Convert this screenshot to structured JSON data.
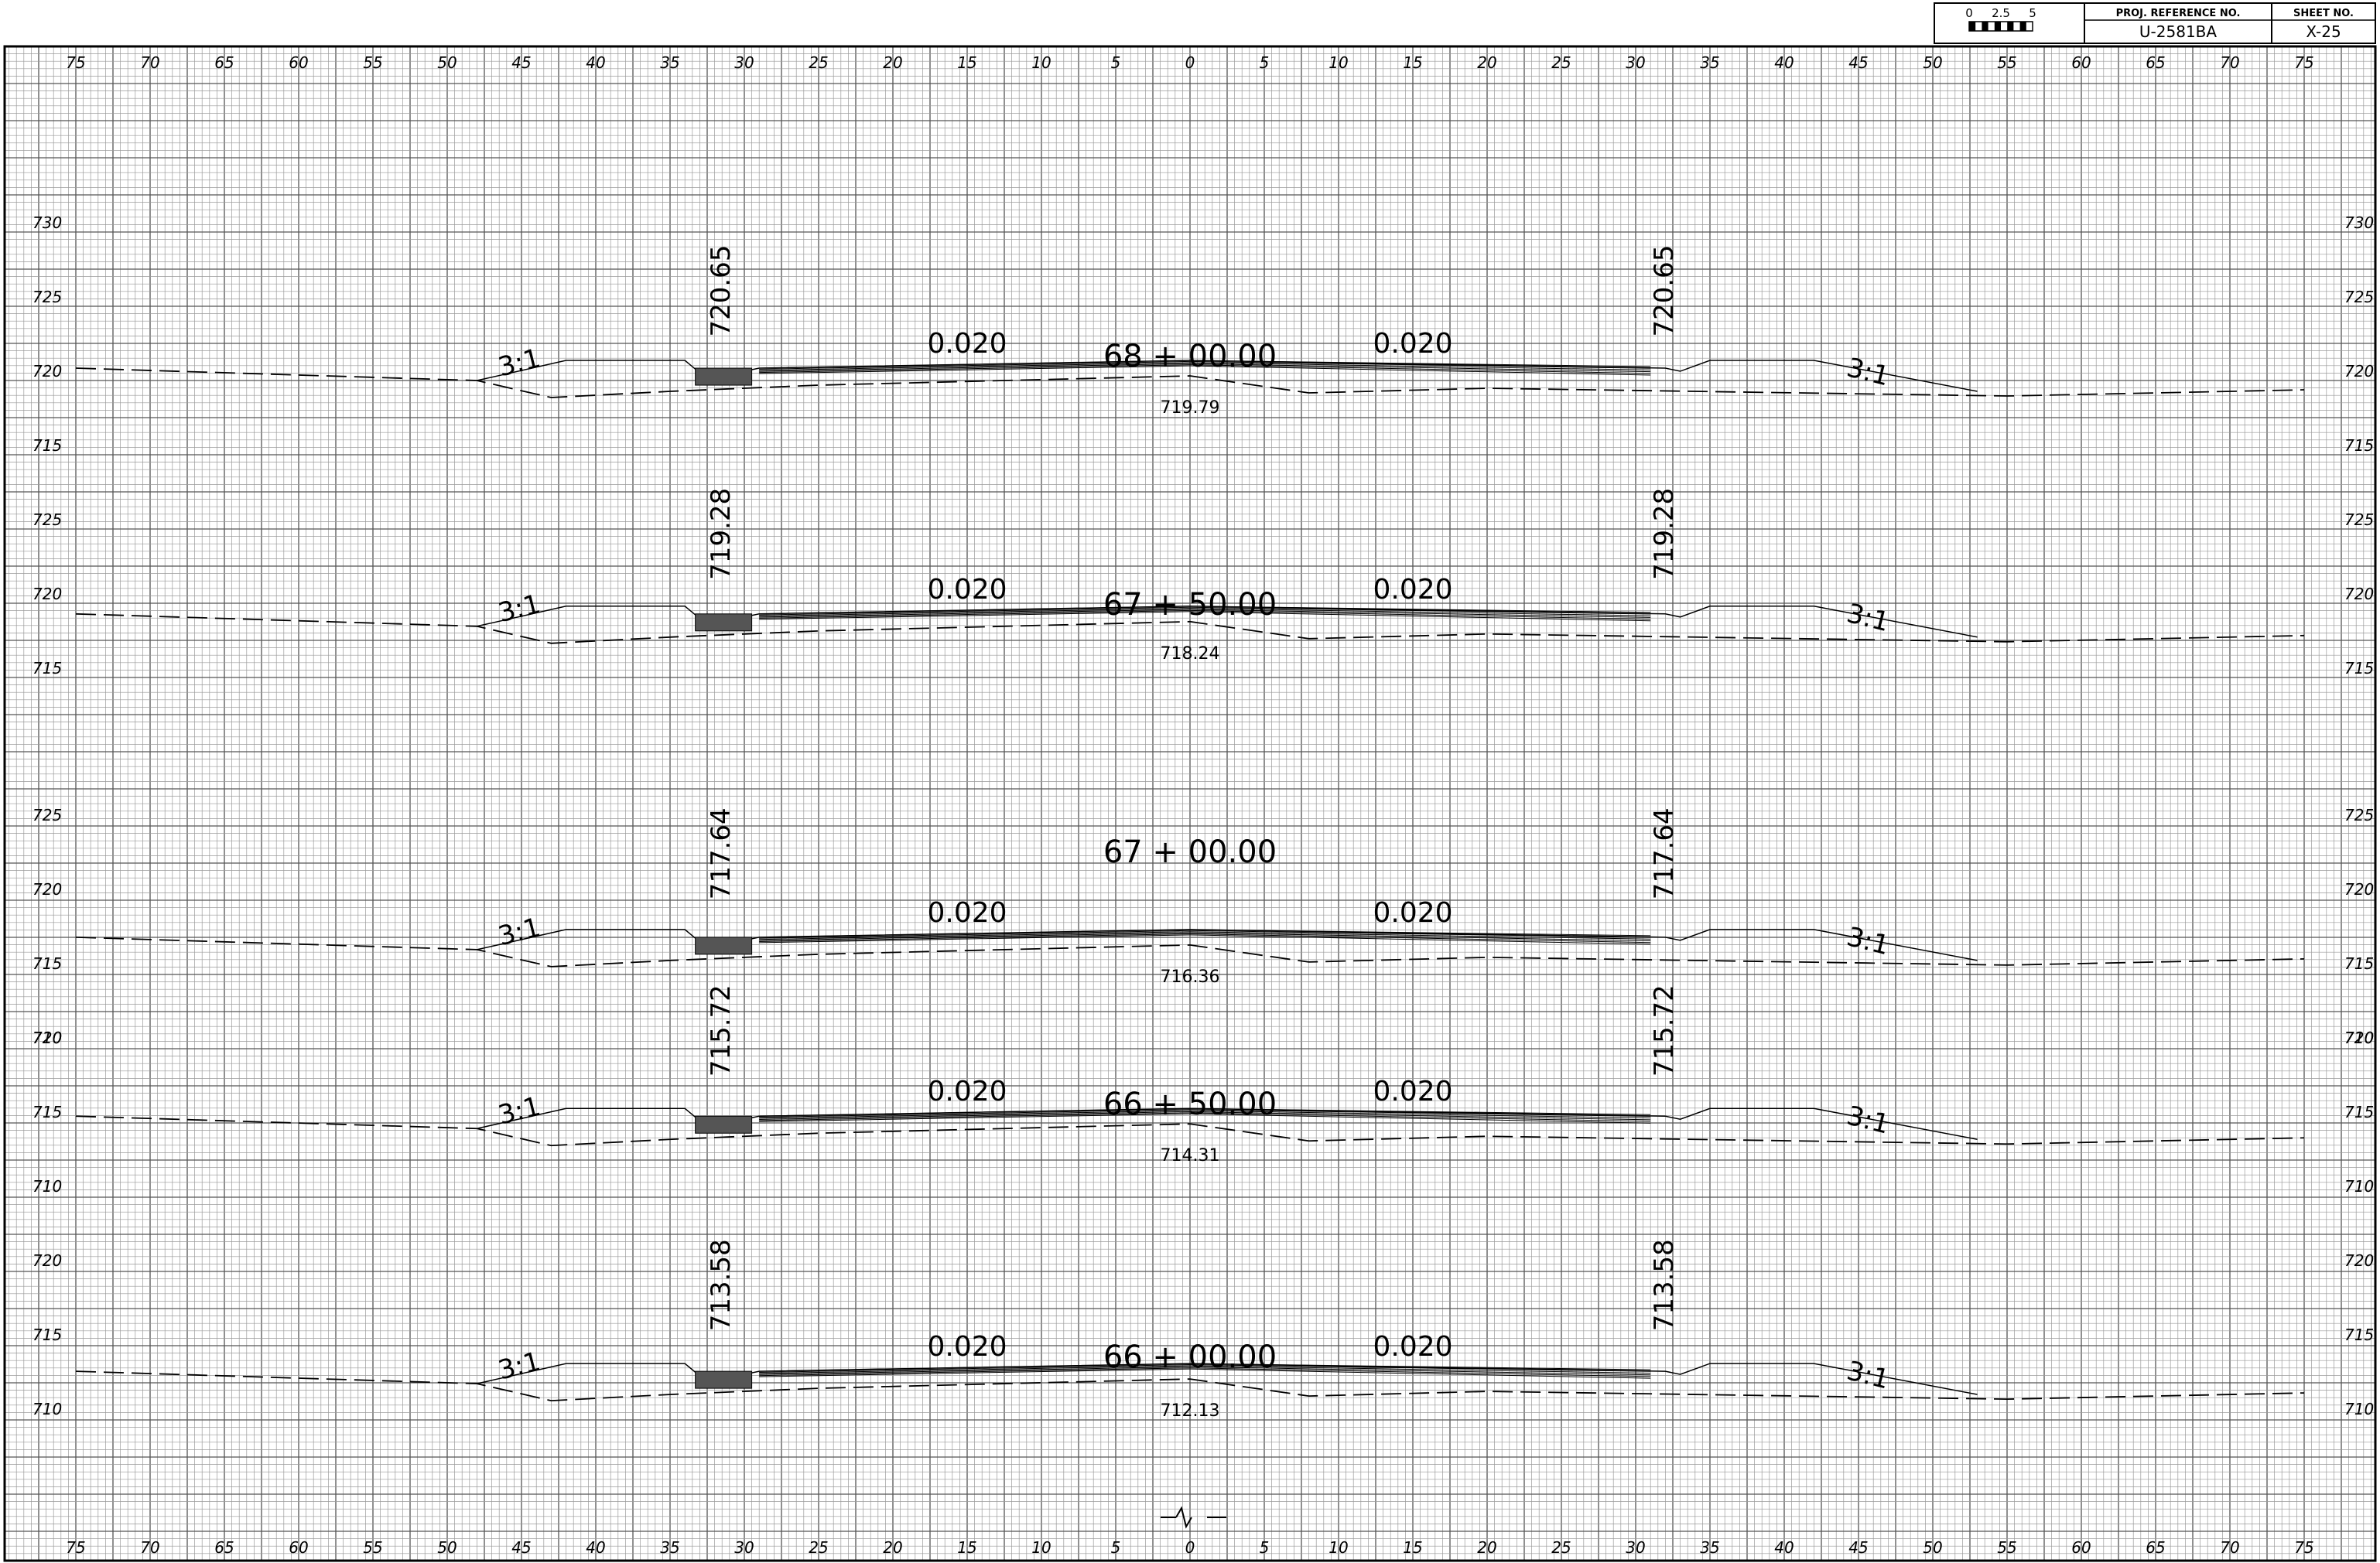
{
  "title_block": {
    "scale": {
      "ticks": [
        "0",
        "2.5",
        "5"
      ]
    },
    "proj_ref_label": "PROJ. REFERENCE NO.",
    "proj_ref_value": "U-2581BA",
    "sheet_no_label": "SHEET NO.",
    "sheet_no_value": "X-25"
  },
  "x_axis_labels": [
    "75",
    "70",
    "65",
    "60",
    "55",
    "50",
    "45",
    "40",
    "35",
    "30",
    "25",
    "20",
    "15",
    "10",
    "5",
    "0",
    "5",
    "10",
    "15",
    "20",
    "25",
    "30",
    "35",
    "40",
    "45",
    "50",
    "55",
    "60",
    "65",
    "70",
    "75"
  ],
  "x_axis_offsets_ft": [
    -75,
    -70,
    -65,
    -60,
    -55,
    -50,
    -45,
    -40,
    -35,
    -30,
    -25,
    -20,
    -15,
    -10,
    -5,
    0,
    5,
    10,
    15,
    20,
    25,
    30,
    35,
    40,
    45,
    50,
    55,
    60,
    65,
    70,
    75
  ],
  "sections": [
    {
      "station": "68 + 00.00",
      "centerline_elevation": "719.79",
      "left_edge_elevation": "720.65",
      "right_edge_elevation": "720.65",
      "left_slope": "3:1",
      "right_slope": "3:1",
      "left_cross_slope": "0.020",
      "right_cross_slope": "0.020",
      "elevation_labels": [
        "730",
        "725",
        "720",
        "715"
      ]
    },
    {
      "station": "67 + 50.00",
      "centerline_elevation": "718.24",
      "left_edge_elevation": "719.28",
      "right_edge_elevation": "719.28",
      "left_slope": "3:1",
      "right_slope": "3:1",
      "left_cross_slope": "0.020",
      "right_cross_slope": "0.020",
      "elevation_labels": [
        "725",
        "720",
        "715"
      ]
    },
    {
      "station": "67 + 00.00",
      "centerline_elevation": "716.36",
      "left_edge_elevation": "717.64",
      "right_edge_elevation": "717.64",
      "left_slope": "3:1",
      "right_slope": "3:1",
      "left_cross_slope": "0.020",
      "right_cross_slope": "0.020",
      "elevation_labels": [
        "725",
        "720",
        "715",
        "710"
      ]
    },
    {
      "station": "66 + 50.00",
      "centerline_elevation": "714.31",
      "left_edge_elevation": "715.72",
      "right_edge_elevation": "715.72",
      "left_slope": "3:1",
      "right_slope": "3:1",
      "left_cross_slope": "0.020",
      "right_cross_slope": "0.020",
      "elevation_labels": [
        "720",
        "715",
        "710"
      ]
    },
    {
      "station": "66 + 00.00",
      "centerline_elevation": "712.13",
      "left_edge_elevation": "713.58",
      "right_edge_elevation": "713.58",
      "left_slope": "3:1",
      "right_slope": "3:1",
      "left_cross_slope": "0.020",
      "right_cross_slope": "0.020",
      "elevation_labels": [
        "720",
        "715",
        "710"
      ]
    }
  ],
  "colors": {
    "grid_fine": "#9a9a9a",
    "grid_major": "#555555",
    "ink": "#000000",
    "paper": "#ffffff"
  }
}
